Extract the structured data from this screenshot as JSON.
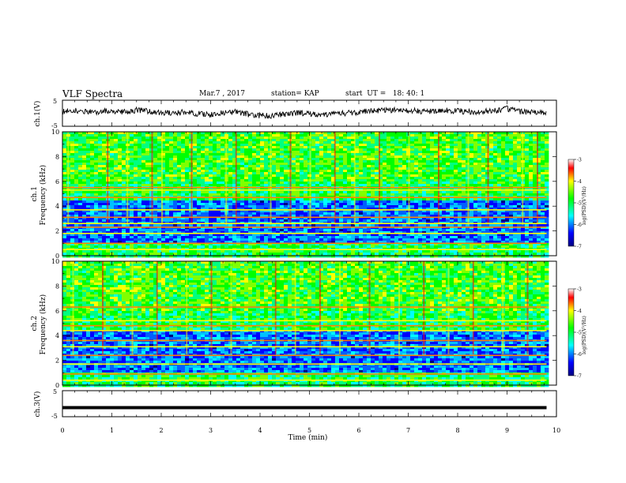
{
  "header": {
    "title": "VLF Spectra",
    "date": "Mar.7 , 2017",
    "station": "station= KAP",
    "start": "start  UT =   18: 40: 1"
  },
  "colors": {
    "frame": "#000000",
    "trace": "#000000",
    "spectrogram_low": "#00007f",
    "spectrogram_high": "#ff0000"
  },
  "chart_data": [
    {
      "type": "line",
      "name": "ch1_waveform",
      "ylabel": "ch.1(V)",
      "ylim": [
        -5,
        5
      ],
      "yticks": [
        "5",
        "-5"
      ],
      "xlim": [
        0,
        10
      ],
      "x": [
        0,
        0.25,
        0.5,
        0.75,
        1,
        1.25,
        1.5,
        1.75,
        2,
        2.25,
        2.5,
        2.75,
        3,
        3.25,
        3.5,
        3.75,
        4,
        4.25,
        4.5,
        4.75,
        5,
        5.25,
        5.5,
        5.75,
        6,
        6.25,
        6.5,
        6.75,
        7,
        7.25,
        7.5,
        7.75,
        8,
        8.25,
        8.5,
        8.75,
        9,
        9.25,
        9.5,
        9.8
      ],
      "y": [
        0.8,
        1.0,
        0.4,
        0.6,
        0.9,
        0.5,
        1.2,
        0.7,
        0.3,
        0.0,
        0.5,
        -0.2,
        -0.5,
        0.2,
        0.6,
        -0.4,
        -0.9,
        -1.1,
        -0.3,
        0.2,
        -0.1,
        -0.6,
        -0.3,
        0.1,
        0.4,
        0.9,
        1.1,
        1.3,
        1.2,
        0.8,
        0.7,
        1.0,
        0.9,
        0.5,
        0.6,
        1.0,
        1.8,
        0.7,
        0.3,
        0.0
      ]
    },
    {
      "type": "heatmap",
      "name": "ch1_spectrogram",
      "ylabel": "ch.1",
      "ylabel2": "Frequency (kHz)",
      "ylim": [
        0,
        10
      ],
      "yticks": [
        "0",
        "2",
        "4",
        "6",
        "8",
        "10"
      ],
      "xlim": [
        0,
        10
      ],
      "colorbar_label": "log(PSD)(V²/Hz)",
      "colorbar_ticks": [
        "-3",
        "-4",
        "-5",
        "-6",
        "-7"
      ],
      "colorbar_range": [
        -7,
        -3
      ],
      "band_frequencies_khz": [
        0.5,
        1.0,
        1.8,
        2.3,
        2.6,
        3.1,
        3.7,
        4.7,
        5.3,
        5.5
      ],
      "vertical_event_times_min": [
        0.1,
        0.9,
        1.3,
        1.8,
        2.0,
        2.6,
        3.3,
        3.5,
        4.2,
        4.6,
        5.0,
        5.5,
        5.9,
        6.4,
        7.0,
        7.6,
        8.2,
        8.6,
        9.3,
        9.6
      ]
    },
    {
      "type": "heatmap",
      "name": "ch2_spectrogram",
      "ylabel": "ch.2",
      "ylabel2": "Frequency (kHz)",
      "ylim": [
        0,
        10
      ],
      "yticks": [
        "0",
        "2",
        "4",
        "6",
        "8",
        "10"
      ],
      "xlim": [
        0,
        10
      ],
      "colorbar_label": "log(PSD)(V²/Hz)",
      "colorbar_ticks": [
        "-3",
        "-4",
        "-5",
        "-6",
        "-7"
      ],
      "colorbar_range": [
        -7,
        -3
      ],
      "band_frequencies_khz": [
        0.4,
        0.9,
        1.7,
        2.4,
        3.1,
        3.6,
        4.4,
        4.8,
        5.2,
        6.3
      ],
      "vertical_event_times_min": [
        0.2,
        0.8,
        1.4,
        1.9,
        2.5,
        3.0,
        3.4,
        4.3,
        4.7,
        5.2,
        5.6,
        6.2,
        6.8,
        7.3,
        7.8,
        8.3,
        8.9,
        9.4
      ]
    },
    {
      "type": "line",
      "name": "ch3_waveform",
      "ylabel": "ch.3(V)",
      "ylim": [
        -5,
        5
      ],
      "yticks": [
        "5",
        "-5"
      ],
      "xlim": [
        0,
        10
      ],
      "xlabel": "Time  (min)",
      "xticks": [
        "0",
        "1",
        "2",
        "3",
        "4",
        "5",
        "6",
        "7",
        "8",
        "9",
        "10"
      ],
      "x": [
        0,
        9.8
      ],
      "y": [
        -1.5,
        -1.5
      ]
    }
  ]
}
